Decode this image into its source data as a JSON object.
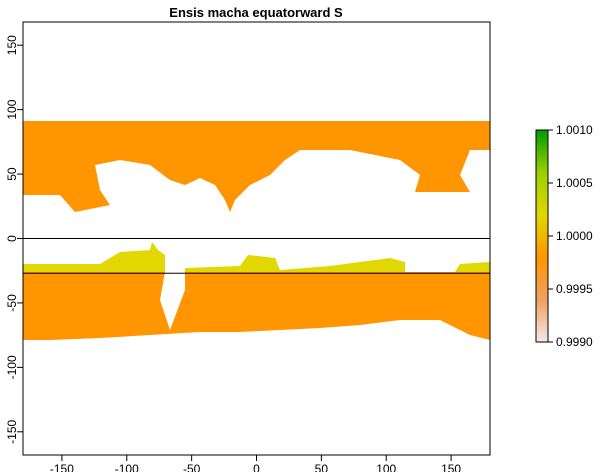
{
  "chart_data": {
    "type": "raster-map",
    "title": "Ensis macha equatorward S",
    "xlim": [
      -180,
      180
    ],
    "ylim": [
      -168,
      168
    ],
    "xticks": [
      -150,
      -100,
      -50,
      0,
      50,
      100,
      150
    ],
    "yticks": [
      -150,
      -100,
      -50,
      0,
      50,
      100,
      150
    ],
    "hlines": [
      0,
      -27
    ],
    "colorbar": {
      "lim": [
        0.999,
        1.001
      ],
      "ticks": [
        {
          "value": 1.001,
          "label": "1.0010"
        },
        {
          "value": 1.0005,
          "label": "1.0005"
        },
        {
          "value": 1.0,
          "label": "1.0000"
        },
        {
          "value": 0.9995,
          "label": "0.9995"
        },
        {
          "value": 0.999,
          "label": "0.9990"
        }
      ],
      "colors": [
        "#f5e8e8",
        "#f0a060",
        "#ff9500",
        "#e0d800",
        "#9ad000",
        "#009a00"
      ]
    }
  }
}
